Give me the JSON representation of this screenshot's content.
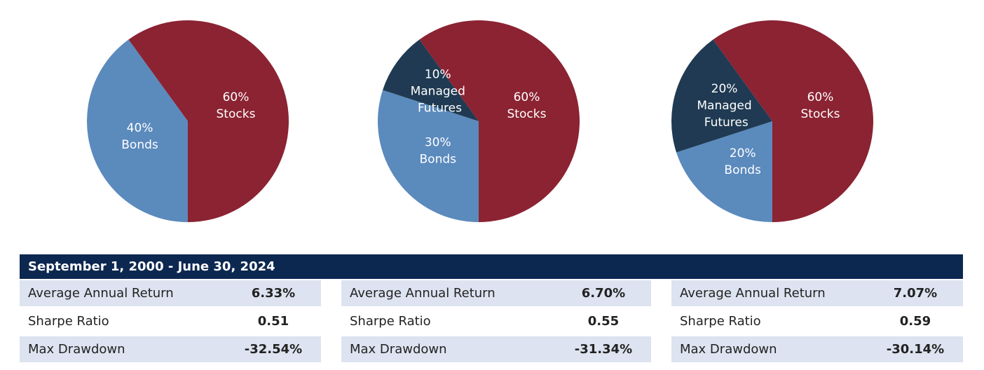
{
  "chart_data": [
    {
      "type": "pie",
      "categories": [
        "Stocks",
        "Bonds"
      ],
      "values": [
        60,
        40
      ],
      "value_labels": [
        "60%",
        "40%"
      ],
      "colors": [
        "#8b2332",
        "#5b8abd"
      ]
    },
    {
      "type": "pie",
      "categories": [
        "Stocks",
        "Bonds",
        "Managed Futures"
      ],
      "values": [
        60,
        30,
        10
      ],
      "value_labels": [
        "60%",
        "30%",
        "10%"
      ],
      "colors": [
        "#8b2332",
        "#5b8abd",
        "#1f3a52"
      ]
    },
    {
      "type": "pie",
      "categories": [
        "Stocks",
        "Bonds",
        "Managed Futures"
      ],
      "values": [
        60,
        20,
        20
      ],
      "value_labels": [
        "60%",
        "20%",
        "20%"
      ],
      "colors": [
        "#8b2332",
        "#5b8abd",
        "#1f3a52"
      ]
    }
  ],
  "table": {
    "header": "September 1, 2000 - June 30, 2024",
    "columns": [
      {
        "rows": [
          [
            "Average Annual Return",
            "6.33%"
          ],
          [
            "Sharpe Ratio",
            "0.51"
          ],
          [
            "Max Drawdown",
            "-32.54%"
          ]
        ]
      },
      {
        "rows": [
          [
            "Average Annual Return",
            "6.70%"
          ],
          [
            "Sharpe Ratio",
            "0.55"
          ],
          [
            "Max Drawdown",
            "-31.34%"
          ]
        ]
      },
      {
        "rows": [
          [
            "Average Annual Return",
            "7.07%"
          ],
          [
            "Sharpe Ratio",
            "0.59"
          ],
          [
            "Max Drawdown",
            "-30.14%"
          ]
        ]
      }
    ]
  }
}
